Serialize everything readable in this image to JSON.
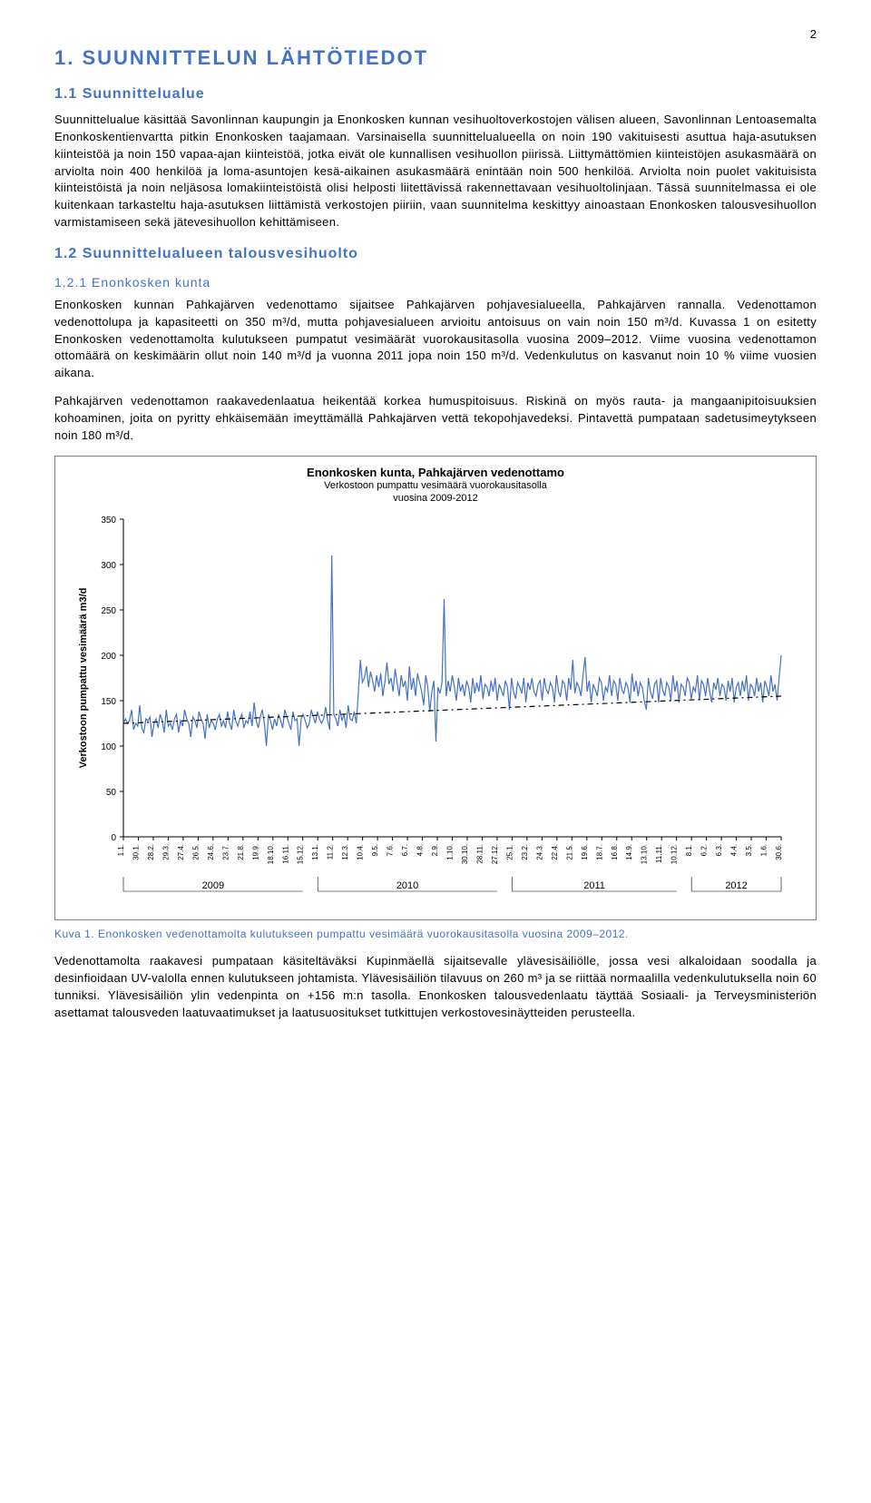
{
  "page_number": "2",
  "h1": "1. SUUNNITTELUN LÄHTÖTIEDOT",
  "h2_1": "1.1 Suunnittelualue",
  "para1": "Suunnittelualue käsittää Savonlinnan kaupungin ja Enonkosken kunnan vesihuoltoverkostojen välisen alueen, Savonlinnan Lentoasemalta Enonkoskentienvartta pitkin Enonkosken taajamaan. Varsinaisella suunnittelualueella on noin 190 vakituisesti asuttua haja-asutuksen kiinteistöä ja noin 150 vapaa-ajan kiinteistöä, jotka eivät ole kunnallisen vesihuollon piirissä. Liittymättömien kiinteistöjen asukasmäärä on arviolta noin 400 henkilöä ja loma-asuntojen kesä-aikainen asukasmäärä enintään noin 500 henkilöä. Arviolta noin puolet vakituisista kiinteistöistä ja noin neljäsosa lomakiinteistöistä olisi helposti liitettävissä rakennettavaan vesihuoltolinjaan. Tässä suunnitelmassa ei ole kuitenkaan tarkasteltu haja-asutuksen liittämistä verkostojen piiriin, vaan suunnitelma keskittyy ainoastaan Enonkosken talousvesihuollon varmistamiseen sekä jätevesihuollon kehittämiseen.",
  "h2_2": "1.2 Suunnittelualueen talousvesihuolto",
  "h3_1": "1.2.1 Enonkosken kunta",
  "para2": "Enonkosken kunnan Pahkajärven vedenottamo sijaitsee Pahkajärven pohjavesialueella, Pahkajärven rannalla. Vedenottamon vedenottolupa ja kapasiteetti on 350 m³/d, mutta pohjavesialueen arvioitu antoisuus on vain noin 150 m³/d. Kuvassa 1 on esitetty Enonkosken vedenottamolta kulutukseen pumpatut vesimäärät vuorokausitasolla vuosina 2009–2012. Viime vuosina vedenottamon ottomäärä on keskimäärin ollut noin 140 m³/d ja vuonna 2011 jopa noin 150 m³/d. Vedenkulutus on kasvanut noin 10 % viime vuosien aikana.",
  "para3": "Pahkajärven vedenottamon raakavedenlaatua heikentää korkea humuspitoisuus. Riskinä on myös rauta- ja mangaanipitoisuuksien kohoaminen, joita on pyritty ehkäisemään imeyttämällä Pahkajärven vettä tekopohjavedeksi. Pintavettä pumpataan sadetusimeytykseen noin 180 m³/d.",
  "caption": "Kuva 1. Enonkosken vedenottamolta kulutukseen pumpattu vesimäärä vuorokausitasolla vuosina 2009–2012.",
  "para4": "Vedenottamolta raakavesi pumpataan käsiteltäväksi Kupinmäellä sijaitsevalle ylävesisäiliölle, jossa vesi alkaloidaan soodalla ja desinfioidaan UV-valolla ennen kulutukseen johtamista. Ylävesisäiliön tilavuus on 260 m³ ja se riittää normaalilla vedenkulutuksella noin 60 tunniksi. Ylävesisäiliön ylin vedenpinta on +156 m:n tasolla. Enonkosken talousvedenlaatu täyttää Sosiaali- ja Terveysministeriön asettamat talousveden laatuvaatimukset ja laatusuositukset tutkittujen verkostovesinäytteiden perusteella.",
  "chart": {
    "type": "line",
    "title": "Enonkosken kunta, Pahkajärven vedenottamo",
    "subtitle": "Verkostoon pumpattu vesimäärä vuorokausitasolla\nvuosina 2009-2012",
    "ylabel": "Verkostoon pumpattu vesimäärä m3/d",
    "ylim": [
      0,
      350
    ],
    "ytick_step": 50,
    "line_color": "#4472c4",
    "line_width": 1.2,
    "trend_color": "#000000",
    "trend_dash": "6 4 2 4",
    "trend_width": 1.2,
    "background_color": "#ffffff",
    "grid": false,
    "border_color": "#7f7f7f",
    "x_ticks": [
      {
        "label": "1.1.",
        "group": "2009"
      },
      {
        "label": "30.1."
      },
      {
        "label": "28.2."
      },
      {
        "label": "29.3."
      },
      {
        "label": "27.4."
      },
      {
        "label": "26.5."
      },
      {
        "label": "24.6."
      },
      {
        "label": "23.7."
      },
      {
        "label": "21.8."
      },
      {
        "label": "19.9."
      },
      {
        "label": "18.10."
      },
      {
        "label": "16.11."
      },
      {
        "label": "15.12."
      },
      {
        "label": "13.1.",
        "group": "2010"
      },
      {
        "label": "11.2."
      },
      {
        "label": "12.3."
      },
      {
        "label": "10.4."
      },
      {
        "label": "9.5."
      },
      {
        "label": "7.6."
      },
      {
        "label": "6.7."
      },
      {
        "label": "4.8."
      },
      {
        "label": "2.9."
      },
      {
        "label": "1.10."
      },
      {
        "label": "30.10."
      },
      {
        "label": "28.11."
      },
      {
        "label": "27.12."
      },
      {
        "label": "25.1.",
        "group": "2011"
      },
      {
        "label": "23.2."
      },
      {
        "label": "24.3."
      },
      {
        "label": "22.4."
      },
      {
        "label": "21.5."
      },
      {
        "label": "19.6."
      },
      {
        "label": "18.7."
      },
      {
        "label": "16.8."
      },
      {
        "label": "14.9."
      },
      {
        "label": "13.10."
      },
      {
        "label": "11.11."
      },
      {
        "label": "10.12."
      },
      {
        "label": "8.1.",
        "group": "2012"
      },
      {
        "label": "6.2."
      },
      {
        "label": "6.3."
      },
      {
        "label": "4.4."
      },
      {
        "label": "3.5."
      },
      {
        "label": "1.6."
      },
      {
        "label": "30.6."
      }
    ],
    "year_boundaries": [
      0,
      13,
      26,
      38,
      45
    ],
    "year_labels": [
      "2009",
      "2010",
      "2011",
      "2012"
    ],
    "values": [
      125,
      130,
      125,
      128,
      140,
      118,
      125,
      122,
      145,
      120,
      115,
      130,
      128,
      132,
      110,
      125,
      130,
      120,
      135,
      128,
      115,
      140,
      122,
      125,
      118,
      130,
      135,
      115,
      128,
      122,
      140,
      130,
      125,
      110,
      132,
      128,
      120,
      138,
      130,
      125,
      108,
      135,
      120,
      128,
      125,
      118,
      130,
      135,
      122,
      128,
      120,
      138,
      125,
      118,
      140,
      128,
      122,
      130,
      135,
      120,
      128,
      125,
      138,
      122,
      148,
      128,
      120,
      132,
      140,
      125,
      100,
      135,
      128,
      118,
      130,
      122,
      135,
      128,
      120,
      140,
      132,
      125,
      118,
      138,
      128,
      130,
      100,
      130,
      135,
      128,
      120,
      125,
      140,
      132,
      125,
      138,
      130,
      125,
      130,
      143,
      128,
      118,
      310,
      135,
      130,
      122,
      140,
      128,
      135,
      120,
      145,
      130,
      128,
      138,
      125,
      158,
      195,
      170,
      175,
      188,
      165,
      182,
      172,
      160,
      178,
      165,
      180,
      155,
      170,
      192,
      168,
      175,
      160,
      185,
      170,
      155,
      178,
      165,
      172,
      150,
      188,
      162,
      175,
      155,
      180,
      170,
      160,
      145,
      178,
      165,
      138,
      160,
      172,
      105,
      165,
      158,
      170,
      262,
      155,
      172,
      160,
      178,
      165,
      150,
      175,
      160,
      168,
      155,
      172,
      165,
      148,
      175,
      158,
      170,
      160,
      178,
      152,
      168,
      165,
      155,
      172,
      160,
      175,
      150,
      168,
      162,
      155,
      172,
      165,
      140,
      175,
      160,
      152,
      170,
      165,
      158,
      175,
      148,
      170,
      162,
      175,
      160,
      155,
      168,
      172,
      150,
      175,
      162,
      158,
      170,
      165,
      148,
      178,
      160,
      155,
      172,
      168,
      150,
      175,
      162,
      195,
      158,
      170,
      165,
      155,
      178,
      198,
      160,
      172,
      148,
      168,
      162,
      155,
      175,
      170,
      150,
      165,
      160,
      178,
      155,
      172,
      168,
      150,
      175,
      162,
      158,
      170,
      165,
      148,
      180,
      160,
      172,
      155,
      170,
      165,
      150,
      140,
      175,
      160,
      152,
      168,
      172,
      148,
      175,
      162,
      155,
      170,
      165,
      150,
      178,
      160,
      172,
      148,
      168,
      165,
      155,
      175,
      170,
      152,
      165,
      160,
      178,
      150,
      172,
      168,
      155,
      175,
      160,
      148,
      170,
      162,
      175,
      155,
      168,
      165,
      150,
      172,
      160,
      175,
      148,
      165,
      170,
      155,
      172,
      160,
      178,
      150,
      168,
      165,
      155,
      175,
      160,
      170,
      148,
      172,
      165,
      155,
      178,
      160,
      168,
      150,
      175,
      200
    ],
    "trend_start": 125,
    "trend_end": 155
  }
}
